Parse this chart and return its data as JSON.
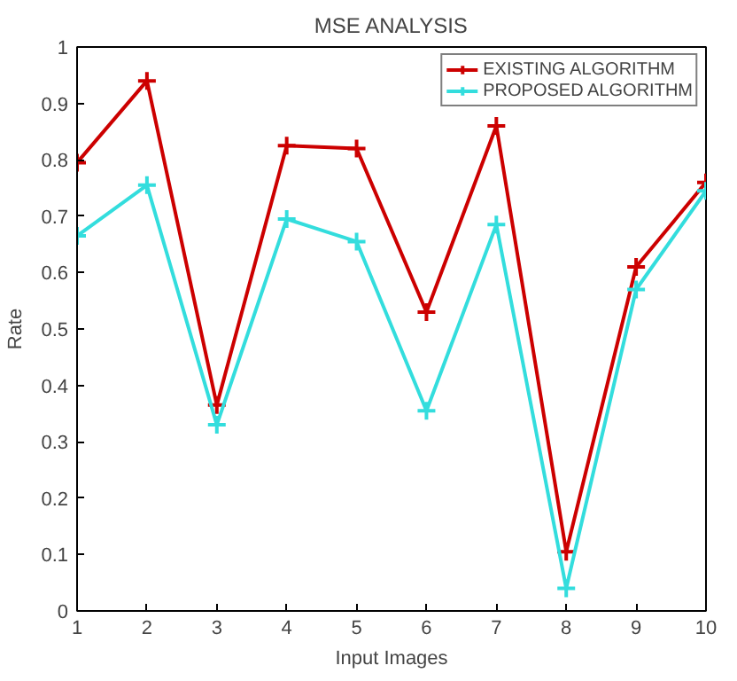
{
  "chart_data": {
    "type": "line",
    "title": "MSE ANALYSIS",
    "xlabel": "Input Images",
    "ylabel": "Rate",
    "x": [
      1,
      2,
      3,
      4,
      5,
      6,
      7,
      8,
      9,
      10
    ],
    "series": [
      {
        "name": "EXISTING ALGORITHM",
        "color": "#cc0000",
        "values": [
          0.795,
          0.94,
          0.365,
          0.825,
          0.82,
          0.53,
          0.86,
          0.105,
          0.61,
          0.76
        ]
      },
      {
        "name": "PROPOSED ALGORITHM",
        "color": "#33dddd",
        "values": [
          0.665,
          0.755,
          0.33,
          0.695,
          0.655,
          0.355,
          0.685,
          0.04,
          0.57,
          0.745
        ]
      }
    ],
    "xlim": [
      1,
      10
    ],
    "xticks": [
      1,
      2,
      3,
      4,
      5,
      6,
      7,
      8,
      9,
      10
    ],
    "ylim": [
      0,
      1
    ],
    "yticks": [
      0,
      0.1,
      0.2,
      0.3,
      0.4,
      0.5,
      0.6,
      0.7,
      0.8,
      0.9,
      1
    ],
    "grid": false,
    "legend": "top right",
    "marker": "cross",
    "line_style": "solid"
  }
}
